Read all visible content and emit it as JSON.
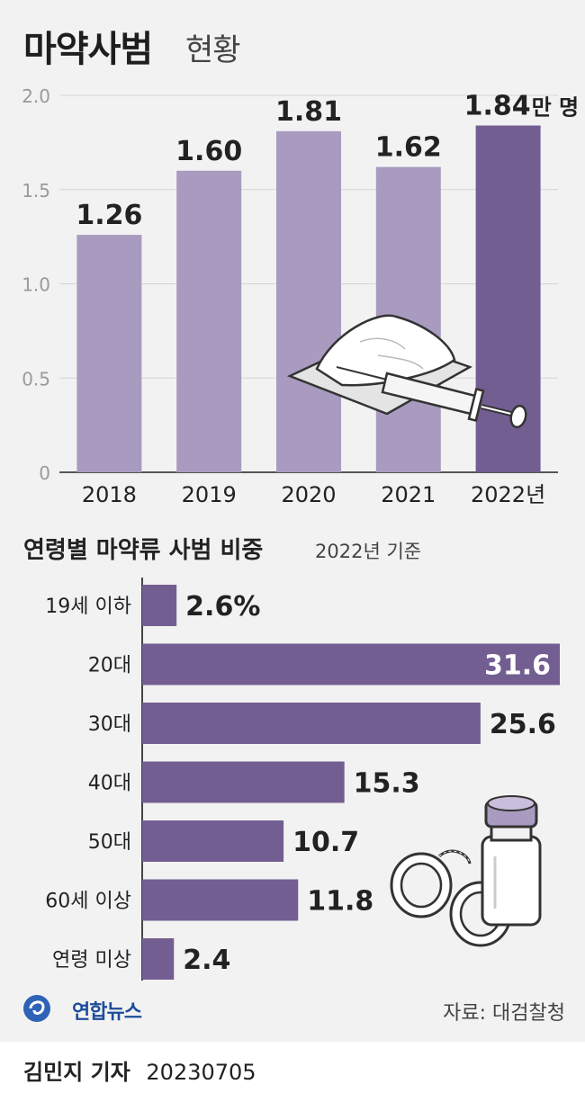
{
  "title": {
    "main": "마약사범",
    "sub": "현황"
  },
  "colors": {
    "bar_light": "#a99bc0",
    "bar_dark": "#735e91",
    "grid": "#d5d5d5",
    "text": "#222222",
    "axis": "#9a9a9a"
  },
  "chart_data": [
    {
      "type": "bar",
      "categories": [
        "2018",
        "2019",
        "2020",
        "2021",
        "2022년"
      ],
      "values": [
        1.26,
        1.6,
        1.81,
        1.62,
        1.84
      ],
      "value_labels": [
        "1.26",
        "1.60",
        "1.81",
        "1.62",
        "1.84"
      ],
      "unit_suffix": "만 명",
      "ylim": [
        0,
        2.0
      ],
      "yticks": [
        "0",
        "0.5",
        "1.0",
        "1.5",
        "2.0"
      ],
      "grid": true,
      "highlight_index": 4
    },
    {
      "type": "bar",
      "orientation": "horizontal",
      "title": "연령별 마약류 사범 비중",
      "subtitle": "2022년 기준",
      "categories": [
        "19세 이하",
        "20대",
        "30대",
        "40대",
        "50대",
        "60세 이상",
        "연령 미상"
      ],
      "values": [
        2.6,
        31.6,
        25.6,
        15.3,
        10.7,
        11.8,
        2.4
      ],
      "value_labels": [
        "2.6%",
        "31.6",
        "25.6",
        "15.3",
        "10.7",
        "11.8",
        "2.4"
      ],
      "xlim": [
        0,
        31.6
      ]
    }
  ],
  "source": "자료: 대검찰청",
  "logo": {
    "text": "연합뉴스",
    "icon": "yonhap-logo-icon"
  },
  "byline": {
    "reporter": "김민지 기자",
    "date": "20230705"
  },
  "illustrations": [
    "syringe-and-powder-icon",
    "handcuffs-icon",
    "vial-icon"
  ]
}
